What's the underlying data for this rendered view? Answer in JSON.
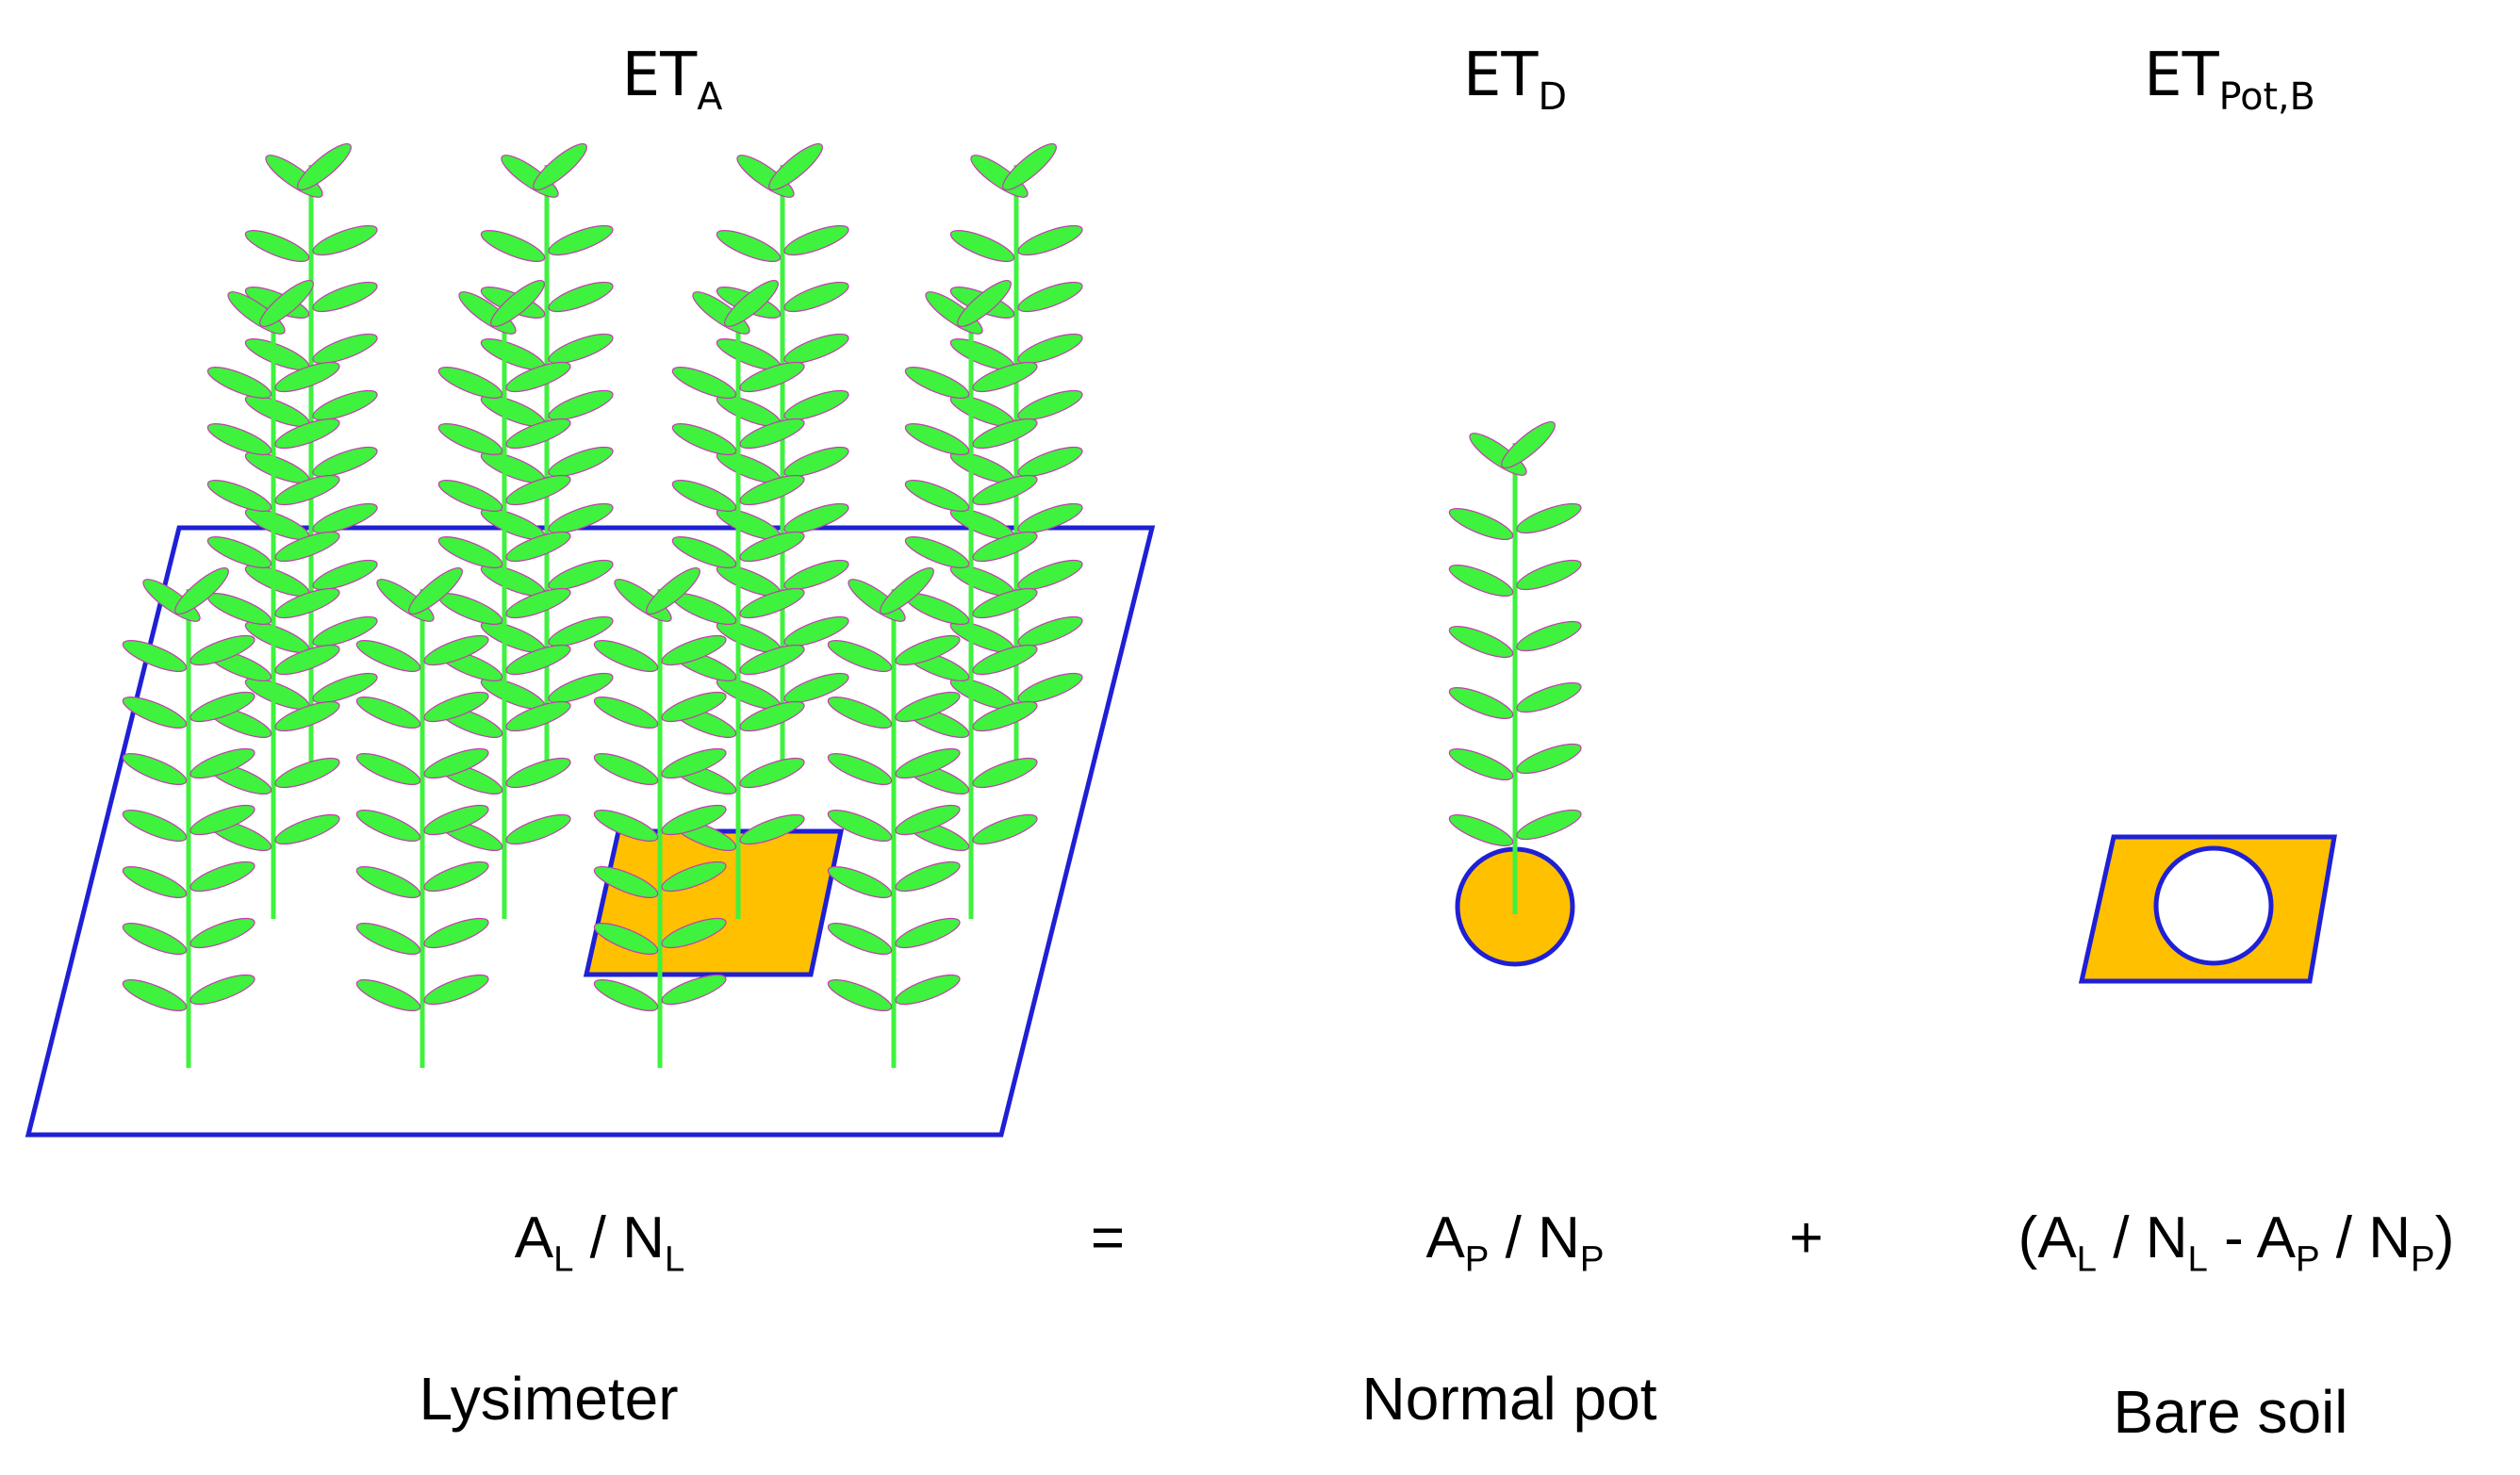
{
  "colors": {
    "outline": "#1f1fd6",
    "soil": "#ffc000",
    "plant": "#3ef23e",
    "leaf_tip": "#c63ab0",
    "text": "#000000"
  },
  "headers": {
    "a": {
      "base": "ET",
      "sub": "A"
    },
    "d": {
      "base": "ET",
      "sub": "D"
    },
    "b": {
      "base": "ET",
      "sub": "Pot,B"
    }
  },
  "equation": {
    "lys": {
      "a": "A",
      "a_sub": "L",
      "sep": " / ",
      "n": "N",
      "n_sub": "L"
    },
    "equals": "=",
    "pot": {
      "a": "A",
      "a_sub": "P",
      "sep": " / ",
      "n": "N",
      "n_sub": "P"
    },
    "plus": "+",
    "bare": {
      "open": "(",
      "a1": "A",
      "a1_sub": "L",
      "sep1": " / ",
      "n1": "N",
      "n1_sub": "L",
      "minus": " - ",
      "a2": "A",
      "a2_sub": "P",
      "sep2": " / ",
      "n2": "N",
      "n2_sub": "P",
      "close": ")"
    }
  },
  "labels": {
    "lysimeter": "Lysimeter",
    "normal_pot": "Normal pot",
    "bare_soil": "Bare soil"
  }
}
